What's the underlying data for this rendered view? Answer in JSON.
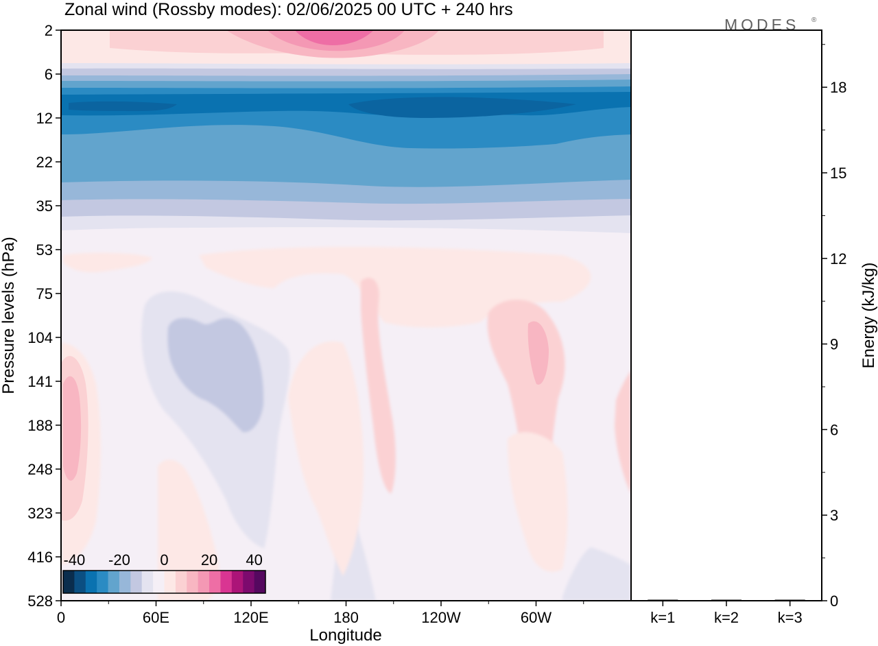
{
  "chart_data": {
    "type": "heatmap",
    "title": "Zonal wind (Rossby modes):  02/06/2025  00 UTC  + 240 hrs",
    "logo_text": "MODES",
    "xlabel": "Longitude",
    "ylabel": "Pressure levels (hPa)",
    "ylabel_right": "Energy (kJ/kg)",
    "x_ticks": [
      "0",
      "60E",
      "120E",
      "180",
      "120W",
      "60W"
    ],
    "x_tick_values": [
      0,
      60,
      120,
      180,
      240,
      300
    ],
    "xlim": [
      0,
      360
    ],
    "y_ticks": [
      "2",
      "6",
      "12",
      "22",
      "35",
      "53",
      "75",
      "104",
      "141",
      "188",
      "248",
      "323",
      "416",
      "528"
    ],
    "right_ticks": [
      "0",
      "3",
      "6",
      "9",
      "12",
      "15",
      "18"
    ],
    "right_tick_values": [
      0,
      3,
      6,
      9,
      12,
      15,
      18
    ],
    "right_ylim": [
      0,
      20
    ],
    "energy_categories": [
      "k=1",
      "k=2",
      "k=3"
    ],
    "energy_values": [
      0.03,
      0.02,
      0.01
    ],
    "colorbar": {
      "ticks": [
        "-40",
        "-20",
        "0",
        "20",
        "40"
      ],
      "tick_values": [
        -40,
        -20,
        0,
        20,
        40
      ],
      "range": [
        -45,
        45
      ],
      "colors": [
        "#0a2d4d",
        "#0b4f82",
        "#0a72b0",
        "#2b8bc3",
        "#62a4cd",
        "#97b7d9",
        "#c3c8e1",
        "#e4e3f0",
        "#f5eff6",
        "#fde8e6",
        "#fbd1d3",
        "#f8b6c2",
        "#f498b4",
        "#ee6ea5",
        "#d93592",
        "#ac1478",
        "#7d0a6e",
        "#55085f"
      ]
    },
    "zonal_mean_profile_ms": [
      {
        "level": 2,
        "value": 3
      },
      {
        "level": 6,
        "value": -5
      },
      {
        "level": 9,
        "value": -30
      },
      {
        "level": 12,
        "value": -27
      },
      {
        "level": 22,
        "value": -20
      },
      {
        "level": 35,
        "value": -8
      },
      {
        "level": 53,
        "value": 0
      },
      {
        "level": 528,
        "value": 0
      }
    ]
  }
}
